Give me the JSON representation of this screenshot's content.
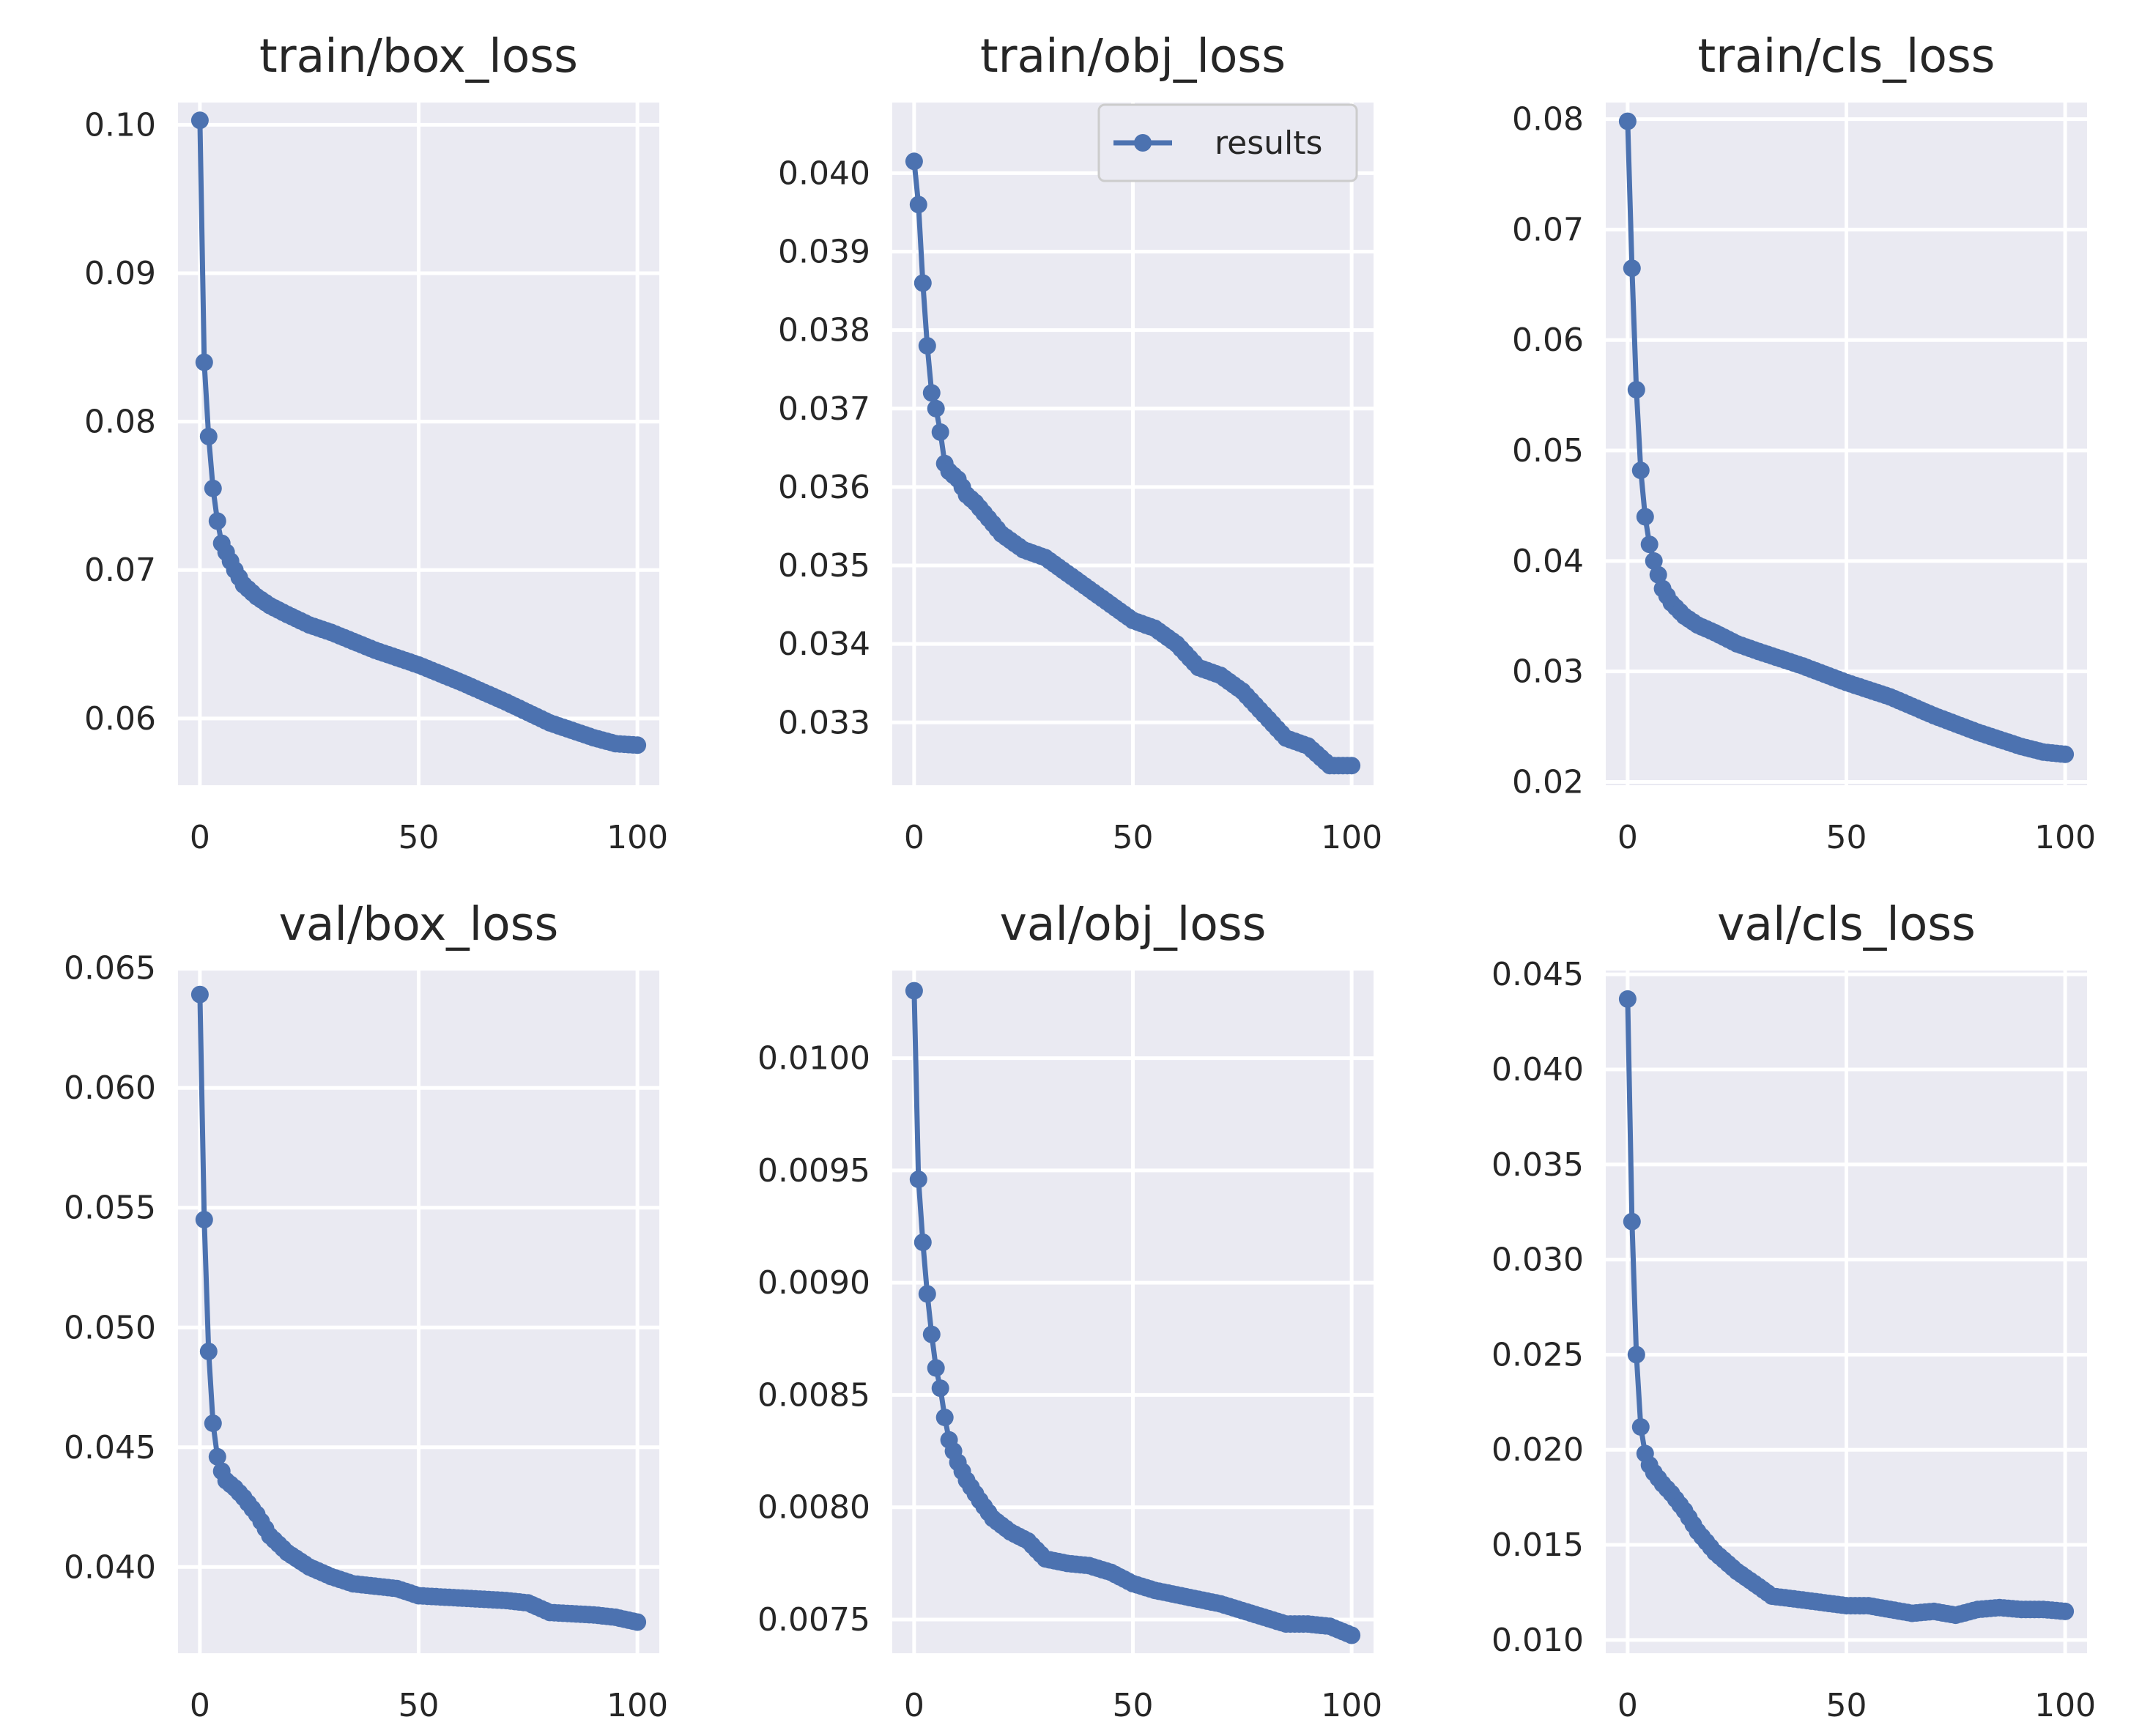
{
  "legend": {
    "label": "results",
    "color": "#4c72b0"
  },
  "style": {
    "panel_bg": "#eaeaf2",
    "grid": "#ffffff",
    "line": "#4c72b0"
  },
  "chart_data": [
    {
      "id": "train-box-loss",
      "type": "line",
      "title": "train/box_loss",
      "xlim": [
        -5,
        105
      ],
      "ylim": [
        0.0555,
        0.1015
      ],
      "xticks": [
        0,
        50,
        100
      ],
      "xtick_labels": [
        "0",
        "50",
        "100"
      ],
      "yticks": [
        0.06,
        0.07,
        0.08,
        0.09,
        0.1
      ],
      "ytick_labels": [
        "0.06",
        "0.07",
        "0.08",
        "0.09",
        "0.10"
      ],
      "keypoints": [
        [
          0,
          0.1003
        ],
        [
          1,
          0.084
        ],
        [
          2,
          0.079
        ],
        [
          3,
          0.0755
        ],
        [
          4,
          0.0733
        ],
        [
          5,
          0.0718
        ],
        [
          6,
          0.0712
        ],
        [
          8,
          0.07
        ],
        [
          10,
          0.069
        ],
        [
          13,
          0.0682
        ],
        [
          16,
          0.0676
        ],
        [
          20,
          0.067
        ],
        [
          25,
          0.0663
        ],
        [
          30,
          0.0658
        ],
        [
          40,
          0.0646
        ],
        [
          50,
          0.0636
        ],
        [
          60,
          0.0624
        ],
        [
          70,
          0.0611
        ],
        [
          80,
          0.0597
        ],
        [
          90,
          0.0587
        ],
        [
          95,
          0.0583
        ],
        [
          100,
          0.0582
        ]
      ]
    },
    {
      "id": "train-obj-loss",
      "type": "line",
      "title": "train/obj_loss",
      "xlim": [
        -5,
        105
      ],
      "ylim": [
        0.0322,
        0.0409
      ],
      "xticks": [
        0,
        50,
        100
      ],
      "xtick_labels": [
        "0",
        "50",
        "100"
      ],
      "yticks": [
        0.033,
        0.034,
        0.035,
        0.036,
        0.037,
        0.038,
        0.039,
        0.04
      ],
      "ytick_labels": [
        "0.033",
        "0.034",
        "0.035",
        "0.036",
        "0.037",
        "0.038",
        "0.039",
        "0.040"
      ],
      "show_legend": true,
      "keypoints": [
        [
          0,
          0.04015
        ],
        [
          1,
          0.0396
        ],
        [
          2,
          0.0386
        ],
        [
          3,
          0.0378
        ],
        [
          4,
          0.0372
        ],
        [
          5,
          0.037
        ],
        [
          6,
          0.0367
        ],
        [
          7,
          0.0363
        ],
        [
          8,
          0.0362
        ],
        [
          10,
          0.0361
        ],
        [
          12,
          0.0359
        ],
        [
          14,
          0.0358
        ],
        [
          17,
          0.0356
        ],
        [
          20,
          0.0354
        ],
        [
          25,
          0.0352
        ],
        [
          30,
          0.0351
        ],
        [
          35,
          0.0349
        ],
        [
          40,
          0.0347
        ],
        [
          45,
          0.0345
        ],
        [
          50,
          0.0343
        ],
        [
          55,
          0.0342
        ],
        [
          60,
          0.034
        ],
        [
          65,
          0.0337
        ],
        [
          70,
          0.0336
        ],
        [
          75,
          0.0334
        ],
        [
          80,
          0.0331
        ],
        [
          85,
          0.0328
        ],
        [
          90,
          0.0327
        ],
        [
          95,
          0.03245
        ],
        [
          100,
          0.03245
        ]
      ]
    },
    {
      "id": "train-cls-loss",
      "type": "line",
      "title": "train/cls_loss",
      "xlim": [
        -5,
        105
      ],
      "ylim": [
        0.0197,
        0.0815
      ],
      "xticks": [
        0,
        50,
        100
      ],
      "xtick_labels": [
        "0",
        "50",
        "100"
      ],
      "yticks": [
        0.02,
        0.03,
        0.04,
        0.05,
        0.06,
        0.07,
        0.08
      ],
      "ytick_labels": [
        "0.02",
        "0.03",
        "0.04",
        "0.05",
        "0.06",
        "0.07",
        "0.08"
      ],
      "keypoints": [
        [
          0,
          0.0798
        ],
        [
          1,
          0.0665
        ],
        [
          2,
          0.0555
        ],
        [
          3,
          0.0482
        ],
        [
          4,
          0.044
        ],
        [
          5,
          0.0415
        ],
        [
          6,
          0.04
        ],
        [
          8,
          0.0375
        ],
        [
          10,
          0.0362
        ],
        [
          13,
          0.035
        ],
        [
          16,
          0.0342
        ],
        [
          20,
          0.0335
        ],
        [
          25,
          0.0325
        ],
        [
          30,
          0.0318
        ],
        [
          40,
          0.0305
        ],
        [
          50,
          0.029
        ],
        [
          60,
          0.0277
        ],
        [
          70,
          0.026
        ],
        [
          80,
          0.0245
        ],
        [
          90,
          0.0232
        ],
        [
          95,
          0.0227
        ],
        [
          100,
          0.0225
        ]
      ]
    },
    {
      "id": "val-box-loss",
      "type": "line",
      "title": "val/box_loss",
      "xlim": [
        -5,
        105
      ],
      "ylim": [
        0.0364,
        0.0649
      ],
      "xticks": [
        0,
        50,
        100
      ],
      "xtick_labels": [
        "0",
        "50",
        "100"
      ],
      "yticks": [
        0.04,
        0.045,
        0.05,
        0.055,
        0.06,
        0.065
      ],
      "ytick_labels": [
        "0.040",
        "0.045",
        "0.050",
        "0.055",
        "0.060",
        "0.065"
      ],
      "keypoints": [
        [
          0,
          0.0639
        ],
        [
          1,
          0.0545
        ],
        [
          2,
          0.049
        ],
        [
          3,
          0.046
        ],
        [
          4,
          0.0446
        ],
        [
          5,
          0.044
        ],
        [
          6,
          0.0436
        ],
        [
          8,
          0.0433
        ],
        [
          10,
          0.0429
        ],
        [
          13,
          0.0422
        ],
        [
          16,
          0.0413
        ],
        [
          20,
          0.0406
        ],
        [
          25,
          0.04
        ],
        [
          30,
          0.0396
        ],
        [
          35,
          0.0393
        ],
        [
          40,
          0.0392
        ],
        [
          45,
          0.0391
        ],
        [
          50,
          0.0388
        ],
        [
          60,
          0.0387
        ],
        [
          70,
          0.0386
        ],
        [
          75,
          0.0385
        ],
        [
          80,
          0.0381
        ],
        [
          90,
          0.038
        ],
        [
          95,
          0.0379
        ],
        [
          100,
          0.0377
        ]
      ]
    },
    {
      "id": "val-obj-loss",
      "type": "line",
      "title": "val/obj_loss",
      "xlim": [
        -5,
        105
      ],
      "ylim": [
        0.00735,
        0.01039
      ],
      "xticks": [
        0,
        50,
        100
      ],
      "xtick_labels": [
        "0",
        "50",
        "100"
      ],
      "yticks": [
        0.0075,
        0.008,
        0.0085,
        0.009,
        0.0095,
        0.01
      ],
      "ytick_labels": [
        "0.0075",
        "0.0080",
        "0.0085",
        "0.0090",
        "0.0095",
        "0.0100"
      ],
      "keypoints": [
        [
          0,
          0.0103
        ],
        [
          1,
          0.00946
        ],
        [
          2,
          0.00918
        ],
        [
          3,
          0.00895
        ],
        [
          4,
          0.00877
        ],
        [
          5,
          0.00862
        ],
        [
          6,
          0.00853
        ],
        [
          7,
          0.0084
        ],
        [
          8,
          0.0083
        ],
        [
          10,
          0.0082
        ],
        [
          12,
          0.00812
        ],
        [
          15,
          0.00803
        ],
        [
          18,
          0.00795
        ],
        [
          22,
          0.00789
        ],
        [
          26,
          0.00785
        ],
        [
          30,
          0.00777
        ],
        [
          35,
          0.00775
        ],
        [
          40,
          0.00774
        ],
        [
          45,
          0.00771
        ],
        [
          50,
          0.00766
        ],
        [
          55,
          0.00763
        ],
        [
          60,
          0.00761
        ],
        [
          70,
          0.00757
        ],
        [
          80,
          0.00751
        ],
        [
          85,
          0.00748
        ],
        [
          90,
          0.00748
        ],
        [
          95,
          0.00747
        ],
        [
          100,
          0.00743
        ]
      ]
    },
    {
      "id": "val-cls-loss",
      "type": "line",
      "title": "val/cls_loss",
      "xlim": [
        -5,
        105
      ],
      "ylim": [
        0.0093,
        0.0452
      ],
      "xticks": [
        0,
        50,
        100
      ],
      "xtick_labels": [
        "0",
        "50",
        "100"
      ],
      "yticks": [
        0.01,
        0.015,
        0.02,
        0.025,
        0.03,
        0.035,
        0.04,
        0.045
      ],
      "ytick_labels": [
        "0.010",
        "0.015",
        "0.020",
        "0.025",
        "0.030",
        "0.035",
        "0.040",
        "0.045"
      ],
      "keypoints": [
        [
          0,
          0.0437
        ],
        [
          1,
          0.032
        ],
        [
          2,
          0.025
        ],
        [
          3,
          0.0212
        ],
        [
          4,
          0.0198
        ],
        [
          5,
          0.0192
        ],
        [
          6,
          0.0188
        ],
        [
          8,
          0.0182
        ],
        [
          10,
          0.0177
        ],
        [
          13,
          0.0168
        ],
        [
          16,
          0.0157
        ],
        [
          20,
          0.0146
        ],
        [
          25,
          0.0136
        ],
        [
          30,
          0.0128
        ],
        [
          33,
          0.0123
        ],
        [
          40,
          0.0121
        ],
        [
          50,
          0.0118
        ],
        [
          55,
          0.0118
        ],
        [
          60,
          0.0116
        ],
        [
          65,
          0.0114
        ],
        [
          70,
          0.0115
        ],
        [
          75,
          0.0113
        ],
        [
          80,
          0.0116
        ],
        [
          85,
          0.0117
        ],
        [
          90,
          0.0116
        ],
        [
          95,
          0.0116
        ],
        [
          100,
          0.0115
        ]
      ]
    }
  ]
}
